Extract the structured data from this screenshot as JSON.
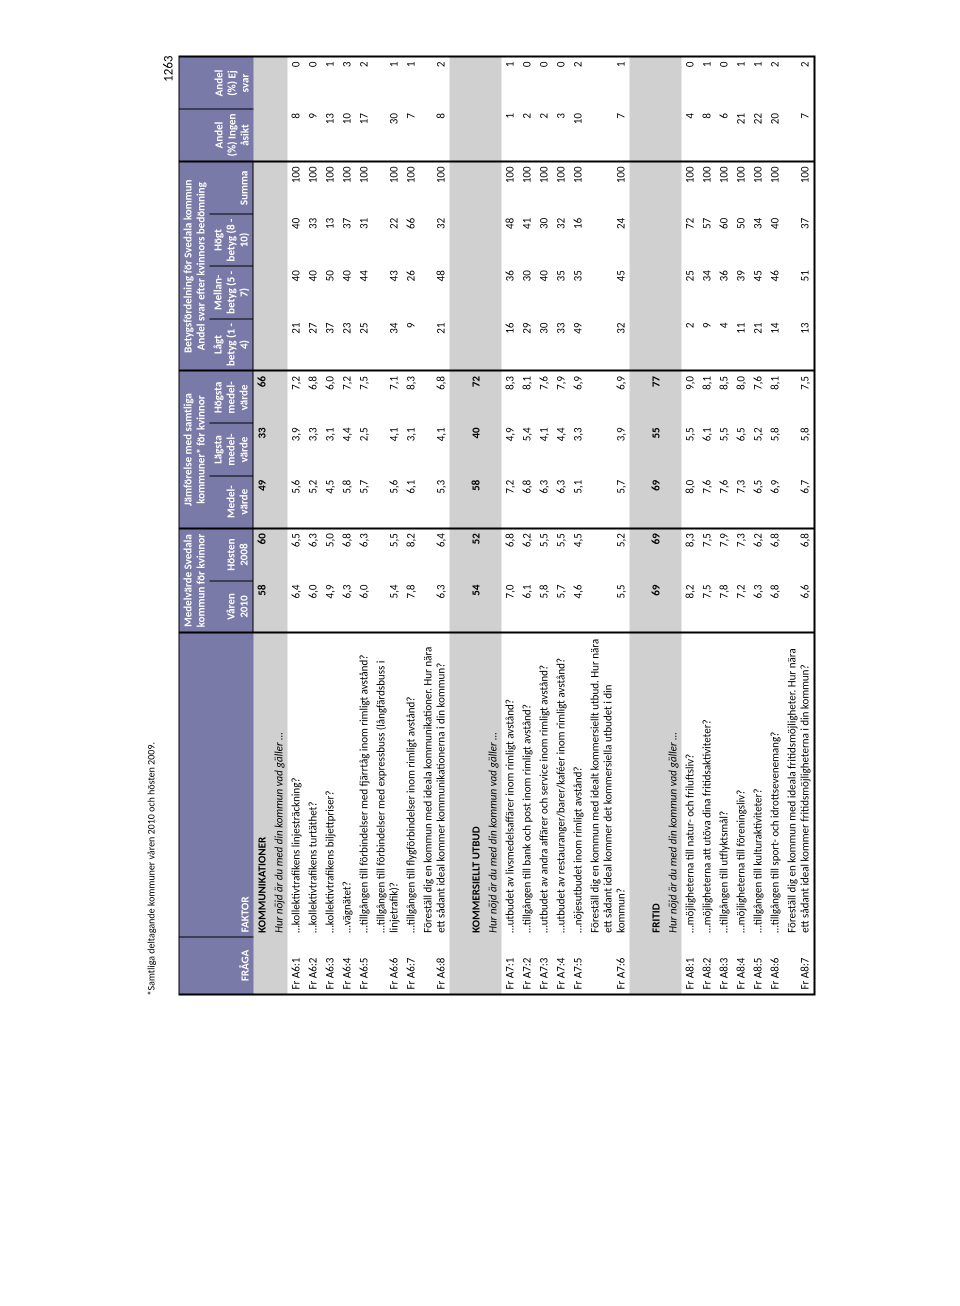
{
  "pageNumber": "1263",
  "footnote": "*Samtliga deltagande kommuner våren 2010 och hösten 2009.",
  "headers": {
    "fraga": "FRÅGA",
    "faktor": "FAKTOR",
    "grp1": "Medelvärde Svedala kommun för kvinnor",
    "g1a": "Våren 2010",
    "g1b": "Hösten 2008",
    "grp2": "Jämförelse med samtliga kommuner* för kvinnor",
    "g2a": "Medel-värde",
    "g2b": "Lägsta medel-värde",
    "g2c": "Högsta medel-värde",
    "grp3": "Betygsfördelning för Svedala kommun Andel svar efter kvinnors bedömning",
    "g3a": "Lågt betyg (1 - 4)",
    "g3b": "Mellan-betyg (5 - 7)",
    "g3c": "Högt betyg (8 - 10)",
    "g3d": "Summa",
    "g4a": "Andel (%) Ingen åsikt",
    "g4b": "Andel (%) Ej svar"
  },
  "sections": [
    {
      "title": "KOMMUNIKATIONER",
      "subtitle": "Hur nöjd är du med din kommun vad gäller …",
      "summary": [
        "58",
        "60",
        "49",
        "33",
        "66",
        "",
        "",
        "",
        "",
        "",
        ""
      ],
      "rows": [
        {
          "f": "Fr A6:1",
          "q": "…kollektivtrafikens linjesträckning?",
          "v": [
            "6,4",
            "6,5",
            "5,6",
            "3,9",
            "7,2",
            "21",
            "40",
            "40",
            "100",
            "8",
            "0"
          ]
        },
        {
          "f": "Fr A6:2",
          "q": "…kollektivtrafikens turtäthet?",
          "v": [
            "6,0",
            "6,3",
            "5,2",
            "3,3",
            "6,8",
            "27",
            "40",
            "33",
            "100",
            "9",
            "0"
          ]
        },
        {
          "f": "Fr A6:3",
          "q": "…kollektivtrafikens biljettpriser?",
          "v": [
            "4,9",
            "5,0",
            "4,5",
            "3,1",
            "6,0",
            "37",
            "50",
            "13",
            "100",
            "13",
            "1"
          ]
        },
        {
          "f": "Fr A6:4",
          "q": "…vägnätet?",
          "v": [
            "6,3",
            "6,8",
            "5,8",
            "4,4",
            "7,2",
            "23",
            "40",
            "37",
            "100",
            "10",
            "3"
          ]
        },
        {
          "f": "Fr A6:5",
          "q": "…tillgången till förbindelser med fjärrtåg inom rimligt avstånd?",
          "v": [
            "6,0",
            "6,3",
            "5,7",
            "2,5",
            "7,5",
            "25",
            "44",
            "31",
            "100",
            "17",
            "2"
          ]
        },
        {
          "f": "Fr A6:6",
          "q": "…tillgången till förbindelser med expressbuss (långfärdsbuss i linjetrafik)?",
          "v": [
            "5,4",
            "5,5",
            "5,6",
            "4,1",
            "7,1",
            "34",
            "43",
            "22",
            "100",
            "30",
            "1"
          ]
        },
        {
          "f": "Fr A6:7",
          "q": "…tillgången till flygförbindelser inom rimligt avstånd?",
          "v": [
            "7,8",
            "8,2",
            "6,1",
            "3,1",
            "8,3",
            "9",
            "26",
            "66",
            "100",
            "7",
            "1"
          ]
        },
        {
          "f": "Fr A6:8",
          "q": "Föreställ dig en kommun med ideala kommunikationer. Hur nära ett sådant ideal kommer kommunikationerna i din kommun?",
          "v": [
            "6,3",
            "6,4",
            "5,3",
            "4,1",
            "6,8",
            "21",
            "48",
            "32",
            "100",
            "8",
            "2"
          ]
        }
      ]
    },
    {
      "title": "KOMMERSIELLT UTBUD",
      "subtitle": "Hur nöjd är du med din kommun vad gäller …",
      "summary": [
        "54",
        "52",
        "58",
        "40",
        "72",
        "",
        "",
        "",
        "",
        "",
        ""
      ],
      "rows": [
        {
          "f": "Fr A7:1",
          "q": "…utbudet av livsmedelsaffärer inom rimligt avstånd?",
          "v": [
            "7,0",
            "6,8",
            "7,2",
            "4,9",
            "8,3",
            "16",
            "36",
            "48",
            "100",
            "1",
            "1"
          ]
        },
        {
          "f": "Fr A7:2",
          "q": "…tillgången till bank och post inom rimligt avstånd?",
          "v": [
            "6,1",
            "6,2",
            "6,8",
            "5,4",
            "8,1",
            "29",
            "30",
            "41",
            "100",
            "2",
            "0"
          ]
        },
        {
          "f": "Fr A7:3",
          "q": "…utbudet av andra affärer och service inom rimligt avstånd?",
          "v": [
            "5,8",
            "5,5",
            "6,3",
            "4,1",
            "7,6",
            "30",
            "40",
            "30",
            "100",
            "2",
            "0"
          ]
        },
        {
          "f": "Fr A7:4",
          "q": "…utbudet av restauranger/barer/kaféer inom rimligt avstånd?",
          "v": [
            "5,7",
            "5,5",
            "6,3",
            "4,4",
            "7,9",
            "33",
            "35",
            "32",
            "100",
            "3",
            "0"
          ]
        },
        {
          "f": "Fr A7:5",
          "q": "…nöjesutbudet inom rimligt avstånd?",
          "v": [
            "4,6",
            "4,5",
            "5,1",
            "3,3",
            "6,9",
            "49",
            "35",
            "16",
            "100",
            "10",
            "2"
          ]
        },
        {
          "f": "Fr A7:6",
          "q": "Föreställ dig en kommun med idealt kommersiellt utbud. Hur nära ett sådant ideal kommer det kommersiella utbudet i din kommun?",
          "v": [
            "5,5",
            "5,2",
            "5,7",
            "3,9",
            "6,9",
            "32",
            "45",
            "24",
            "100",
            "7",
            "1"
          ]
        }
      ]
    },
    {
      "title": "FRITID",
      "subtitle": "Hur nöjd är du med din kommun vad gäller …",
      "summary": [
        "69",
        "69",
        "69",
        "55",
        "77",
        "",
        "",
        "",
        "",
        "",
        ""
      ],
      "rows": [
        {
          "f": "Fr A8:1",
          "q": "…möjligheterna till natur- och friluftsliv?",
          "v": [
            "8,2",
            "8,3",
            "8,0",
            "5,5",
            "9,0",
            "2",
            "25",
            "72",
            "100",
            "4",
            "0"
          ]
        },
        {
          "f": "Fr A8:2",
          "q": "…möjligheterna att utöva dina fritidsaktiviteter?",
          "v": [
            "7,5",
            "7,5",
            "7,6",
            "6,1",
            "8,1",
            "9",
            "34",
            "57",
            "100",
            "8",
            "1"
          ]
        },
        {
          "f": "Fr A8:3",
          "q": "…tillgången till utflyktsmål?",
          "v": [
            "7,8",
            "7,9",
            "7,6",
            "5,5",
            "8,5",
            "4",
            "36",
            "60",
            "100",
            "6",
            "0"
          ]
        },
        {
          "f": "Fr A8:4",
          "q": "…möjligheterna till föreningsliv?",
          "v": [
            "7,2",
            "7,3",
            "7,3",
            "6,5",
            "8,0",
            "11",
            "39",
            "50",
            "100",
            "21",
            "1"
          ]
        },
        {
          "f": "Fr A8:5",
          "q": "…tillgången till kulturaktiviteter?",
          "v": [
            "6,3",
            "6,2",
            "6,5",
            "5,2",
            "7,6",
            "21",
            "45",
            "34",
            "100",
            "22",
            "1"
          ]
        },
        {
          "f": "Fr A8:6",
          "q": "…tillgången till sport- och idrottsevenemang?",
          "v": [
            "6,8",
            "6,8",
            "6,9",
            "5,8",
            "8,1",
            "14",
            "46",
            "40",
            "100",
            "20",
            "2"
          ]
        },
        {
          "f": "Fr A8:7",
          "q": "Föreställ dig en kommun med ideala fritidsmöjligheter. Hur nära ett sådant ideal kommer fritidsmöjligheterna i din kommun?",
          "v": [
            "6,6",
            "6,8",
            "6,7",
            "5,8",
            "7,5",
            "13",
            "51",
            "37",
            "100",
            "7",
            "2"
          ]
        }
      ]
    }
  ]
}
